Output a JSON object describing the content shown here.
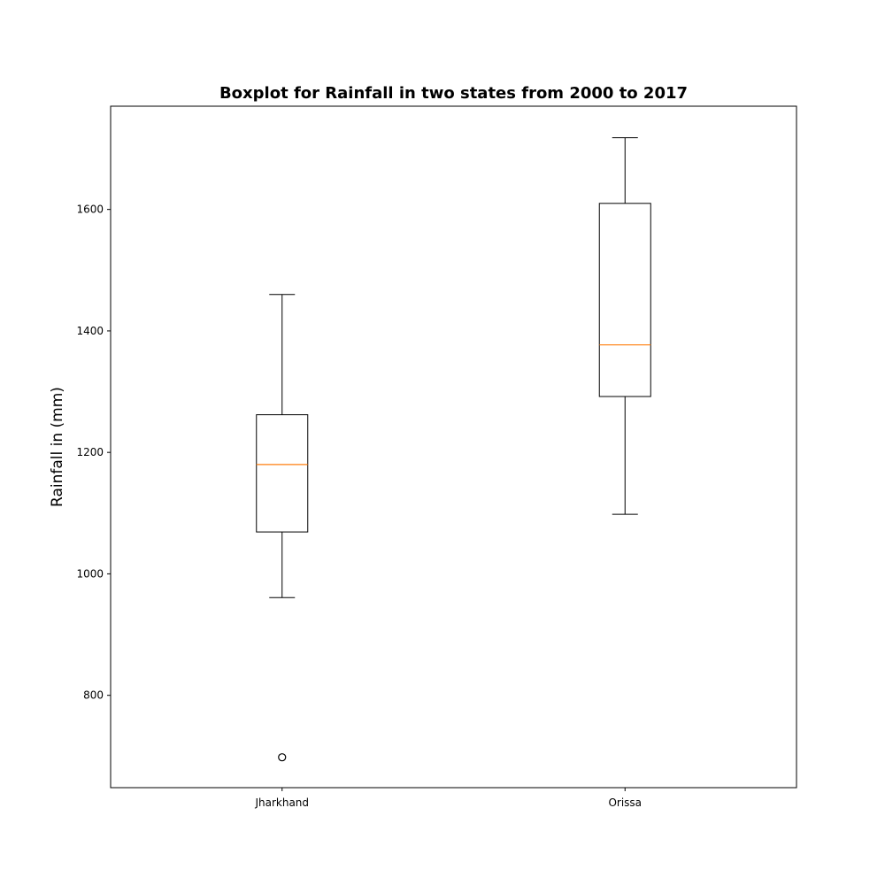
{
  "chart_data": {
    "type": "boxplot",
    "title": "Boxplot for Rainfall in two states from 2000 to 2017",
    "xlabel": "",
    "ylabel": "Rainfall in (mm)",
    "ylim": [
      648,
      1770
    ],
    "yticks": [
      800,
      1000,
      1200,
      1400,
      1600
    ],
    "grid": false,
    "categories": [
      "Jharkhand",
      "Orissa"
    ],
    "boxes": [
      {
        "category": "Jharkhand",
        "whisker_low": 961,
        "q1": 1069,
        "median": 1180,
        "q3": 1262,
        "whisker_high": 1460,
        "outliers": [
          698
        ]
      },
      {
        "category": "Orissa",
        "whisker_low": 1098,
        "q1": 1292,
        "median": 1377,
        "q3": 1610,
        "whisker_high": 1718,
        "outliers": []
      }
    ],
    "colors": {
      "box": "#000000",
      "median": "#ff7f0e",
      "outlier": "#000000"
    }
  }
}
